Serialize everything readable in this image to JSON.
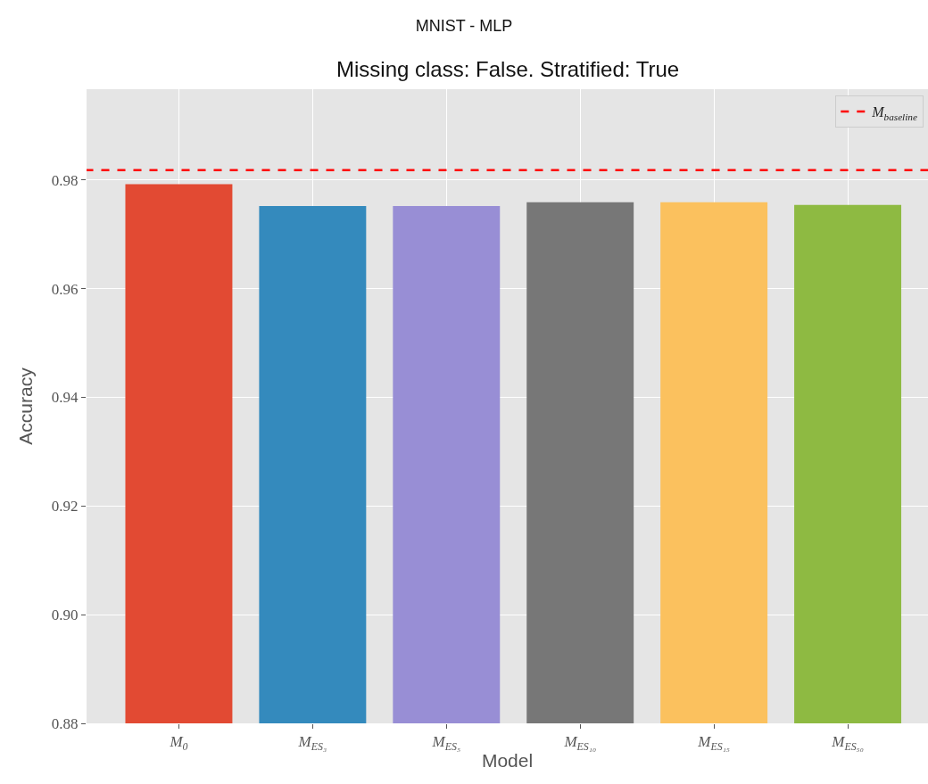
{
  "chart_data": {
    "type": "bar",
    "title": "MNIST - MLP",
    "subtitle": "Missing class: False. Stratified: True",
    "xlabel": "Model",
    "ylabel": "Accuracy",
    "categories": [
      "M$_{0}$",
      "M$_{ES₃}$",
      "M$_{ES₅}$",
      "M$_{ES₁₀}$",
      "M$_{ES₁₅}$",
      "M$_{ES₅₀}$"
    ],
    "values": [
      0.9792,
      0.9752,
      0.9752,
      0.9759,
      0.9759,
      0.9754
    ],
    "colors": [
      "#e24a33",
      "#348abd",
      "#988ed5",
      "#777777",
      "#fbc15e",
      "#8eba42"
    ],
    "ylim": [
      0.88,
      0.9967
    ],
    "yticks": [
      {
        "value": 0.88,
        "label": "0.88"
      },
      {
        "value": 0.9,
        "label": "0.90"
      },
      {
        "value": 0.92,
        "label": "0.92"
      },
      {
        "value": 0.94,
        "label": "0.94"
      },
      {
        "value": 0.96,
        "label": "0.96"
      },
      {
        "value": 0.98,
        "label": "0.98"
      }
    ],
    "ref_lines": [
      {
        "axis": "y",
        "value": 0.9818,
        "label": "M$_{baseline}$",
        "color": "#ff0000",
        "line_style": "dashed"
      }
    ],
    "grid": true,
    "legend": "top right"
  }
}
